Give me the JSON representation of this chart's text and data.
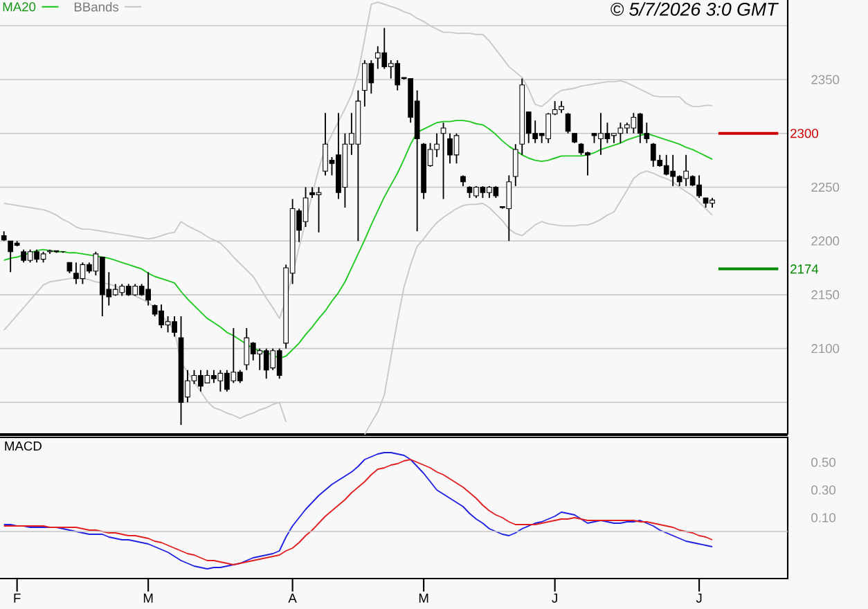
{
  "chart_data": [
    {
      "type": "candlestick",
      "annotations": [
        "© 5/7/2026 3:0 GMT"
      ],
      "color": "#000000",
      "categories": [
        null,
        null,
        null,
        null,
        null,
        null,
        null,
        null,
        null,
        null,
        null,
        null,
        null,
        null,
        null,
        null,
        null,
        null,
        null,
        null,
        null,
        null,
        null,
        null,
        null,
        null,
        null,
        null,
        null,
        null,
        null,
        null,
        null,
        null,
        null,
        null,
        null,
        null,
        null,
        null,
        null,
        null,
        null,
        null,
        null,
        null,
        null,
        null,
        null,
        null,
        null,
        null,
        null,
        null,
        null,
        null,
        null,
        null,
        null,
        null,
        null,
        null,
        null,
        null,
        null,
        null,
        null,
        null,
        null,
        null,
        null,
        null,
        null,
        null,
        null,
        null,
        null,
        null,
        null,
        null,
        null,
        null,
        null,
        null,
        null,
        null,
        null,
        null,
        null,
        null,
        null,
        null,
        null,
        null,
        null,
        null,
        null,
        null,
        null,
        null,
        null,
        null,
        null,
        null,
        null,
        null,
        null,
        null,
        null
      ],
      "ohlc": [
        [
          2205,
          2209,
          2200,
          2201
        ],
        [
          2200,
          2200,
          2171,
          2190
        ],
        [
          2198,
          2200,
          2195,
          2196
        ],
        [
          2190,
          2192,
          2180,
          2182
        ],
        [
          2182,
          2192,
          2180,
          2190
        ],
        [
          2190,
          2192,
          2180,
          2183
        ],
        [
          2183,
          2190,
          2180,
          2188
        ],
        [
          2190,
          2192,
          2188,
          2191
        ],
        [
          2191,
          2191,
          2189,
          2190
        ],
        [
          2190,
          2190,
          2189,
          2190
        ],
        [
          2180,
          2180,
          2170,
          2172
        ],
        [
          2170,
          2180,
          2160,
          2165
        ],
        [
          2165,
          2180,
          2160,
          2178
        ],
        [
          2178,
          2180,
          2170,
          2172
        ],
        [
          2172,
          2190,
          2168,
          2188
        ],
        [
          2185,
          2185,
          2130,
          2150
        ],
        [
          2155,
          2171,
          2140,
          2148
        ],
        [
          2150,
          2160,
          2149,
          2155
        ],
        [
          2152,
          2160,
          2149,
          2158
        ],
        [
          2158,
          2160,
          2149,
          2150
        ],
        [
          2150,
          2160,
          2149,
          2158
        ],
        [
          2158,
          2160,
          2149,
          2150
        ],
        [
          2155,
          2171,
          2140,
          2145
        ],
        [
          2140,
          2141,
          2130,
          2132
        ],
        [
          2135,
          2141,
          2119,
          2122
        ],
        [
          2122,
          2130,
          2115,
          2125
        ],
        [
          2125,
          2130,
          2111,
          2115
        ],
        [
          2110,
          2130,
          2029,
          2050
        ],
        [
          2055,
          2080,
          2050,
          2070
        ],
        [
          2070,
          2080,
          2067,
          2075
        ],
        [
          2075,
          2080,
          2060,
          2065
        ],
        [
          2068,
          2080,
          2068,
          2075
        ],
        [
          2075,
          2080,
          2068,
          2072
        ],
        [
          2070,
          2080,
          2060,
          2077
        ],
        [
          2077,
          2080,
          2060,
          2062
        ],
        [
          2070,
          2119,
          2068,
          2078
        ],
        [
          2078,
          2080,
          2068,
          2070
        ],
        [
          2085,
          2119,
          2080,
          2110
        ],
        [
          2105,
          2106,
          2089,
          2095
        ],
        [
          2095,
          2100,
          2080,
          2098
        ],
        [
          2098,
          2100,
          2072,
          2080
        ],
        [
          2082,
          2100,
          2080,
          2098
        ],
        [
          2098,
          2100,
          2072,
          2075
        ],
        [
          2105,
          2178,
          2100,
          2175
        ],
        [
          2170,
          2239,
          2160,
          2230
        ],
        [
          2228,
          2230,
          2199,
          2210
        ],
        [
          2218,
          2250,
          2213,
          2240
        ],
        [
          2245,
          2250,
          2240,
          2243
        ],
        [
          2243,
          2250,
          2208,
          2245
        ],
        [
          2265,
          2319,
          2261,
          2290
        ],
        [
          2275,
          2278,
          2261,
          2272
        ],
        [
          2280,
          2319,
          2239,
          2245
        ],
        [
          2250,
          2300,
          2231,
          2290
        ],
        [
          2290,
          2319,
          2280,
          2300
        ],
        [
          2290,
          2340,
          2200,
          2330
        ],
        [
          2340,
          2368,
          2325,
          2365
        ],
        [
          2365,
          2368,
          2337,
          2347
        ],
        [
          2370,
          2381,
          2360,
          2375
        ],
        [
          2375,
          2398,
          2360,
          2362
        ],
        [
          2362,
          2368,
          2351,
          2365
        ],
        [
          2365,
          2368,
          2340,
          2345
        ],
        [
          2352,
          2352,
          2350,
          2351
        ],
        [
          2351,
          2351,
          2310,
          2315
        ],
        [
          2330,
          2340,
          2209,
          2295
        ],
        [
          2290,
          2291,
          2239,
          2245
        ],
        [
          2270,
          2291,
          2269,
          2285
        ],
        [
          2285,
          2300,
          2278,
          2290
        ],
        [
          2300,
          2310,
          2239,
          2305
        ],
        [
          2295,
          2300,
          2272,
          2280
        ],
        [
          2280,
          2300,
          2272,
          2298
        ],
        [
          2260,
          2261,
          2251,
          2255
        ],
        [
          2250,
          2251,
          2240,
          2245
        ],
        [
          2242,
          2251,
          2240,
          2250
        ],
        [
          2250,
          2251,
          2240,
          2245
        ],
        [
          2245,
          2251,
          2240,
          2250
        ],
        [
          2250,
          2251,
          2240,
          2242
        ],
        [
          2232,
          2232,
          2230,
          2231
        ],
        [
          2230,
          2261,
          2200,
          2255
        ],
        [
          2260,
          2290,
          2251,
          2285
        ],
        [
          2290,
          2351,
          2280,
          2345
        ],
        [
          2320,
          2320,
          2291,
          2300
        ],
        [
          2300,
          2312,
          2291,
          2295
        ],
        [
          2300,
          2300,
          2291,
          2298
        ],
        [
          2295,
          2319,
          2291,
          2318
        ],
        [
          2318,
          2330,
          2317,
          2322
        ],
        [
          2322,
          2330,
          2319,
          2325
        ],
        [
          2318,
          2319,
          2300,
          2302
        ],
        [
          2300,
          2300,
          2291,
          2292
        ],
        [
          2290,
          2291,
          2280,
          2282
        ],
        [
          2282,
          2283,
          2261,
          2280
        ],
        [
          2300,
          2300,
          2291,
          2298
        ],
        [
          2295,
          2319,
          2280,
          2300
        ],
        [
          2300,
          2310,
          2291,
          2295
        ],
        [
          2298,
          2300,
          2291,
          2300
        ],
        [
          2300,
          2310,
          2291,
          2305
        ],
        [
          2305,
          2310,
          2300,
          2308
        ],
        [
          2305,
          2319,
          2300,
          2315
        ],
        [
          2318,
          2319,
          2291,
          2300
        ],
        [
          2300,
          2310,
          2291,
          2295
        ],
        [
          2290,
          2291,
          2269,
          2275
        ],
        [
          2275,
          2280,
          2269,
          2270
        ],
        [
          2270,
          2280,
          2261,
          2262
        ],
        [
          2265,
          2280,
          2251,
          2260
        ],
        [
          2260,
          2261,
          2251,
          2255
        ],
        [
          2258,
          2280,
          2251,
          2265
        ],
        [
          2260,
          2261,
          2251,
          2252
        ],
        [
          2252,
          2261,
          2240,
          2242
        ],
        [
          2240,
          2240,
          2231,
          2235
        ],
        [
          2235,
          2240,
          2231,
          2238
        ]
      ],
      "series": [
        {
          "name": "MA20",
          "type": "line",
          "color": "#1ec81e",
          "values": [
            2182,
            2184,
            2185,
            2187,
            2189,
            2191,
            2192,
            2191,
            2190,
            2190,
            2189,
            2189,
            2188,
            2187,
            2186,
            2185,
            2184,
            2182,
            2180,
            2178,
            2176,
            2174,
            2170,
            2167,
            2165,
            2163,
            2161,
            2153,
            2146,
            2140,
            2134,
            2128,
            2124,
            2120,
            2115,
            2112,
            2108,
            2104,
            2100,
            2098,
            2096,
            2094,
            2091,
            2093,
            2099,
            2105,
            2113,
            2120,
            2128,
            2135,
            2144,
            2152,
            2162,
            2175,
            2188,
            2201,
            2215,
            2228,
            2241,
            2252,
            2263,
            2276,
            2290,
            2301,
            2304,
            2307,
            2310,
            2311,
            2311,
            2312,
            2312,
            2311,
            2309,
            2308,
            2304,
            2299,
            2293,
            2288,
            2284,
            2280,
            2277,
            2275,
            2274,
            2275,
            2277,
            2279,
            2279,
            2279,
            2279,
            2280,
            2282,
            2285,
            2287,
            2289,
            2291,
            2294,
            2296,
            2298,
            2300,
            2298,
            2296,
            2294,
            2292,
            2290,
            2287,
            2285,
            2282,
            2279,
            2276
          ]
        },
        {
          "name": "BBands",
          "type": "line",
          "color": "#c8c8c8",
          "values": [
            2235,
            2234,
            2233,
            2232,
            2231,
            2230,
            2229,
            2227,
            2224,
            2220,
            2217,
            2213,
            2211,
            2211,
            2210,
            2209,
            2208,
            2207,
            2206,
            2205,
            2204,
            2203,
            2202,
            2203,
            2205,
            2207,
            2208,
            2218,
            2214,
            2211,
            2208,
            2204,
            2201,
            2198,
            2192,
            2185,
            2179,
            2173,
            2167,
            2157,
            2147,
            2138,
            2128,
            2145,
            2169,
            2194,
            2218,
            2243,
            2267,
            2287,
            2299,
            2311,
            2323,
            2336,
            2356,
            2388,
            2420,
            2422,
            2420,
            2418,
            2416,
            2413,
            2411,
            2407,
            2404,
            2400,
            2397,
            2394,
            2394,
            2393,
            2393,
            2393,
            2392,
            2392,
            2386,
            2378,
            2370,
            2362,
            2357,
            2352,
            2341,
            2327,
            2325,
            2330,
            2336,
            2340,
            2341,
            2342,
            2344,
            2345,
            2346,
            2347,
            2348,
            2348,
            2349,
            2347,
            2344,
            2341,
            2338,
            2335,
            2334,
            2334,
            2334,
            2334,
            2328,
            2325,
            2325,
            2326,
            2326
          ]
        },
        {
          "type": "line",
          "color": "#c8c8c8",
          "values": [
            2117,
            2124,
            2131,
            2138,
            2145,
            2152,
            2159,
            2162,
            2163,
            2164,
            2165,
            2166,
            2165,
            2164,
            2162,
            2161,
            2160,
            2158,
            2155,
            2152,
            2149,
            2146,
            2143,
            2138,
            2131,
            2124,
            2117,
            2087,
            2078,
            2069,
            2060,
            2051,
            2045,
            2043,
            2040,
            2038,
            2035,
            2038,
            2040,
            2043,
            2045,
            2048,
            2050,
            2032,
            null,
            null,
            null,
            null,
            null,
            null,
            null,
            null,
            null,
            null,
            null,
            2020,
            2031,
            2041,
            2057,
            2092,
            2126,
            2157,
            2178,
            2195,
            2202,
            2210,
            2217,
            2222,
            2226,
            2230,
            2233,
            2234,
            2234,
            2235,
            2231,
            2225,
            2219,
            2211,
            2207,
            2205,
            2210,
            2215,
            2218,
            2216,
            2215,
            2214,
            2214,
            2214,
            2215,
            2215,
            2217,
            2220,
            2224,
            2227,
            2237,
            2247,
            2258,
            2263,
            2265,
            2263,
            2260,
            2258,
            2255,
            2250,
            2246,
            2242,
            2236,
            2230,
            2224
          ]
        }
      ],
      "ylim": [
        2020,
        2424
      ],
      "yticks": [
        {
          "value": 2050,
          "label": null
        },
        2100,
        2150,
        2200,
        2250,
        {
          "value": 2300,
          "label": null
        },
        2350,
        {
          "value": 2400,
          "label": null
        }
      ],
      "grid": "y",
      "legend": "top left",
      "tick_labels": "y",
      "ref_lines": [
        {
          "axis": "y",
          "value": 2300,
          "label": "2300",
          "color": "#cc0000"
        },
        {
          "axis": "y",
          "value": 2174,
          "label": "2174",
          "color": "#008800"
        }
      ]
    },
    {
      "type": "line",
      "title": "MACD",
      "series": [
        {
          "color": "#2020e0",
          "values": [
            0.05,
            0.05,
            0.04,
            0.04,
            0.03,
            0.03,
            0.03,
            0.03,
            0.03,
            0.02,
            0.01,
            0,
            -0.01,
            -0.02,
            -0.02,
            -0.02,
            -0.04,
            -0.05,
            -0.06,
            -0.06,
            -0.07,
            -0.08,
            -0.09,
            -0.11,
            -0.13,
            -0.15,
            -0.18,
            -0.21,
            -0.23,
            -0.25,
            -0.26,
            -0.27,
            -0.26,
            -0.26,
            -0.25,
            -0.24,
            -0.23,
            -0.21,
            -0.19,
            -0.18,
            -0.17,
            -0.16,
            -0.14,
            -0.04,
            0.04,
            0.1,
            0.16,
            0.21,
            0.26,
            0.3,
            0.34,
            0.37,
            0.4,
            0.43,
            0.47,
            0.52,
            0.54,
            0.56,
            0.57,
            0.57,
            0.56,
            0.55,
            0.52,
            0.47,
            0.42,
            0.36,
            0.3,
            0.27,
            0.24,
            0.21,
            0.18,
            0.13,
            0.09,
            0.06,
            0.02,
            0,
            -0.02,
            -0.03,
            -0.01,
            0.02,
            0.04,
            0.06,
            0.07,
            0.09,
            0.11,
            0.14,
            0.13,
            0.12,
            0.09,
            0.06,
            0.07,
            0.08,
            0.07,
            0.06,
            0.06,
            0.07,
            0.07,
            0.08,
            0.06,
            0.04,
            0.01,
            -0.01,
            -0.03,
            -0.05,
            -0.07,
            -0.08,
            -0.09,
            -0.1,
            -0.11
          ]
        },
        {
          "color": "#e02020",
          "values": [
            0.04,
            0.04,
            0.04,
            0.04,
            0.04,
            0.04,
            0.04,
            0.03,
            0.03,
            0.03,
            0.03,
            0.03,
            0.02,
            0.01,
            0.01,
            0,
            -0.01,
            -0.01,
            -0.02,
            -0.03,
            -0.03,
            -0.04,
            -0.05,
            -0.07,
            -0.08,
            -0.1,
            -0.12,
            -0.14,
            -0.16,
            -0.17,
            -0.19,
            -0.21,
            -0.21,
            -0.22,
            -0.23,
            -0.24,
            -0.23,
            -0.22,
            -0.21,
            -0.2,
            -0.19,
            -0.18,
            -0.17,
            -0.14,
            -0.12,
            -0.08,
            -0.03,
            0.01,
            0.06,
            0.11,
            0.15,
            0.19,
            0.23,
            0.28,
            0.32,
            0.36,
            0.41,
            0.45,
            0.46,
            0.48,
            0.49,
            0.51,
            0.52,
            0.5,
            0.48,
            0.46,
            0.43,
            0.41,
            0.38,
            0.35,
            0.32,
            0.28,
            0.24,
            0.19,
            0.15,
            0.12,
            0.1,
            0.07,
            0.05,
            0.05,
            0.05,
            0.05,
            0.06,
            0.07,
            0.08,
            0.09,
            0.09,
            0.1,
            0.09,
            0.08,
            0.08,
            0.08,
            0.08,
            0.08,
            0.08,
            0.08,
            0.08,
            0.07,
            0.07,
            0.06,
            0.05,
            0.04,
            0.03,
            0.01,
            0,
            -0.01,
            -0.03,
            -0.04,
            -0.06
          ]
        }
      ],
      "categories": [
        null,
        null,
        "F",
        null,
        null,
        null,
        null,
        null,
        null,
        null,
        null,
        null,
        null,
        null,
        null,
        null,
        null,
        null,
        null,
        null,
        null,
        null,
        "M",
        null,
        null,
        null,
        null,
        null,
        null,
        null,
        null,
        null,
        null,
        null,
        null,
        null,
        null,
        null,
        null,
        null,
        null,
        null,
        null,
        null,
        "A",
        null,
        null,
        null,
        null,
        null,
        null,
        null,
        null,
        null,
        null,
        null,
        null,
        null,
        null,
        null,
        null,
        null,
        null,
        null,
        "M",
        null,
        null,
        null,
        null,
        null,
        null,
        null,
        null,
        null,
        null,
        null,
        null,
        null,
        null,
        null,
        null,
        null,
        null,
        null,
        "J",
        null,
        null,
        null,
        null,
        null,
        null,
        null,
        null,
        null,
        null,
        null,
        null,
        null,
        null,
        null,
        null,
        null,
        null,
        null,
        null,
        null,
        "J",
        null,
        null
      ],
      "ylim": [
        -0.34,
        0.68
      ],
      "yticks": [
        {
          "value": 0.1,
          "label": "0.10"
        },
        {
          "value": 0.3,
          "label": "0.30"
        },
        {
          "value": 0.5,
          "label": "0.50"
        }
      ],
      "ref_lines": [
        {
          "axis": "y",
          "value": 0,
          "color": "#c8c8c8"
        }
      ]
    }
  ]
}
